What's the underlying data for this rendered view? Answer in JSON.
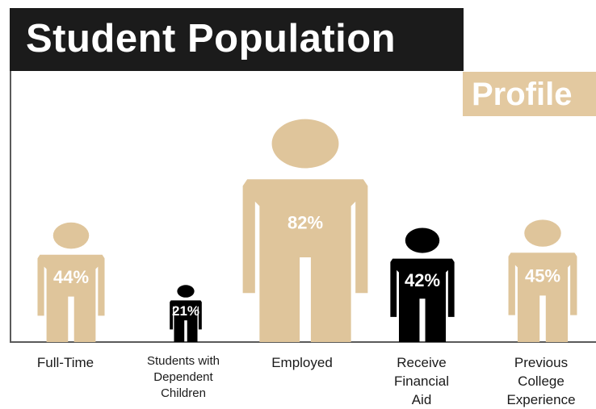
{
  "title": "Student Population",
  "subtitle": "Profile",
  "colors": {
    "tan": "#dfc59b",
    "black": "#000000",
    "title_bg": "#1b1b1b",
    "subtitle_bg": "#e3c9a0"
  },
  "chart_data": {
    "type": "bar",
    "categories": [
      "Full-Time",
      "Students with Dependent Children",
      "Employed",
      "Receive Financial Aid",
      "Previous College Experience"
    ],
    "values": [
      44,
      21,
      82,
      42,
      45
    ],
    "value_labels": [
      "44%",
      "21%",
      "82%",
      "42%",
      "45%"
    ],
    "mark_colors": [
      "tan",
      "black",
      "tan",
      "black",
      "tan"
    ],
    "title": "Student Population",
    "subtitle": "Profile",
    "ylim": [
      0,
      100
    ],
    "grid": false
  },
  "labels": {
    "cat0": [
      "Full-Time"
    ],
    "cat1": [
      "Students with",
      "Dependent",
      "Children"
    ],
    "cat2": [
      "Employed"
    ],
    "cat3": [
      "Receive",
      "Financial",
      "Aid"
    ],
    "cat4": [
      "Previous",
      "College",
      "Experience"
    ]
  }
}
